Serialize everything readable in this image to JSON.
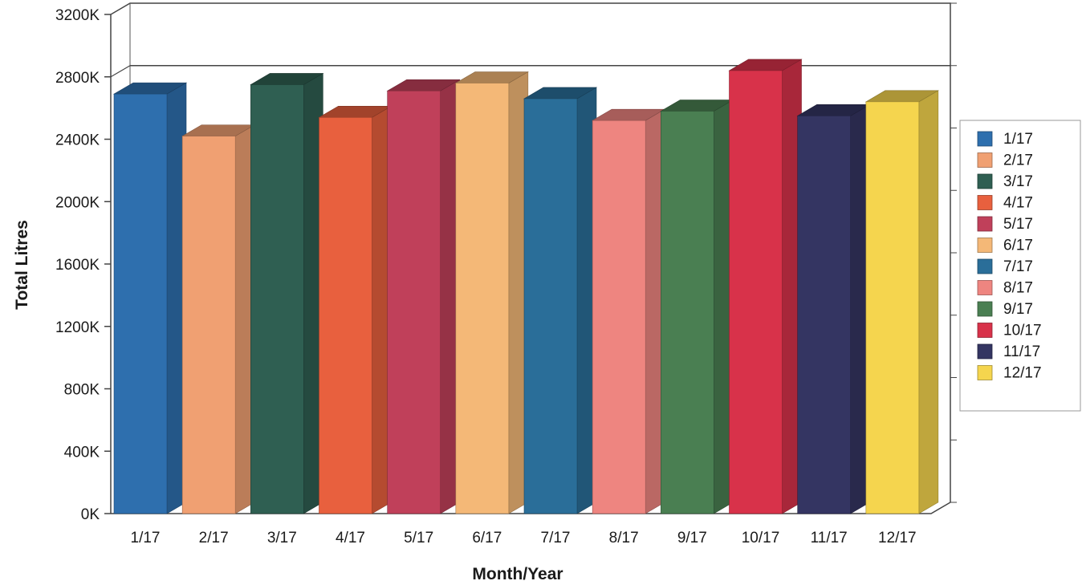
{
  "chart_data": {
    "type": "bar",
    "style": "3d",
    "xlabel": "Month/Year",
    "ylabel": "Total Litres",
    "categories": [
      "1/17",
      "2/17",
      "3/17",
      "4/17",
      "5/17",
      "6/17",
      "7/17",
      "8/17",
      "9/17",
      "10/17",
      "11/17",
      "12/17"
    ],
    "values": [
      2690000,
      2420000,
      2750000,
      2540000,
      2710000,
      2760000,
      2660000,
      2520000,
      2580000,
      2840000,
      2550000,
      2640000
    ],
    "colors": [
      "#2e6fae",
      "#f0a072",
      "#2f5f52",
      "#e8603e",
      "#c0405a",
      "#f4b877",
      "#2a6e99",
      "#ee8580",
      "#4a7f52",
      "#d8324a",
      "#343562",
      "#f5d54e"
    ],
    "ylim": [
      0,
      3200000
    ],
    "yticks": [
      "0K",
      "400K",
      "800K",
      "1200K",
      "1600K",
      "2000K",
      "2400K",
      "2800K",
      "3200K"
    ],
    "ytick_values": [
      0,
      400000,
      800000,
      1200000,
      1600000,
      2000000,
      2400000,
      2800000,
      3200000
    ],
    "grid": false,
    "legend": {
      "placement": "right",
      "entries": [
        "1/17",
        "2/17",
        "3/17",
        "4/17",
        "5/17",
        "6/17",
        "7/17",
        "8/17",
        "9/17",
        "10/17",
        "11/17",
        "12/17"
      ]
    }
  }
}
